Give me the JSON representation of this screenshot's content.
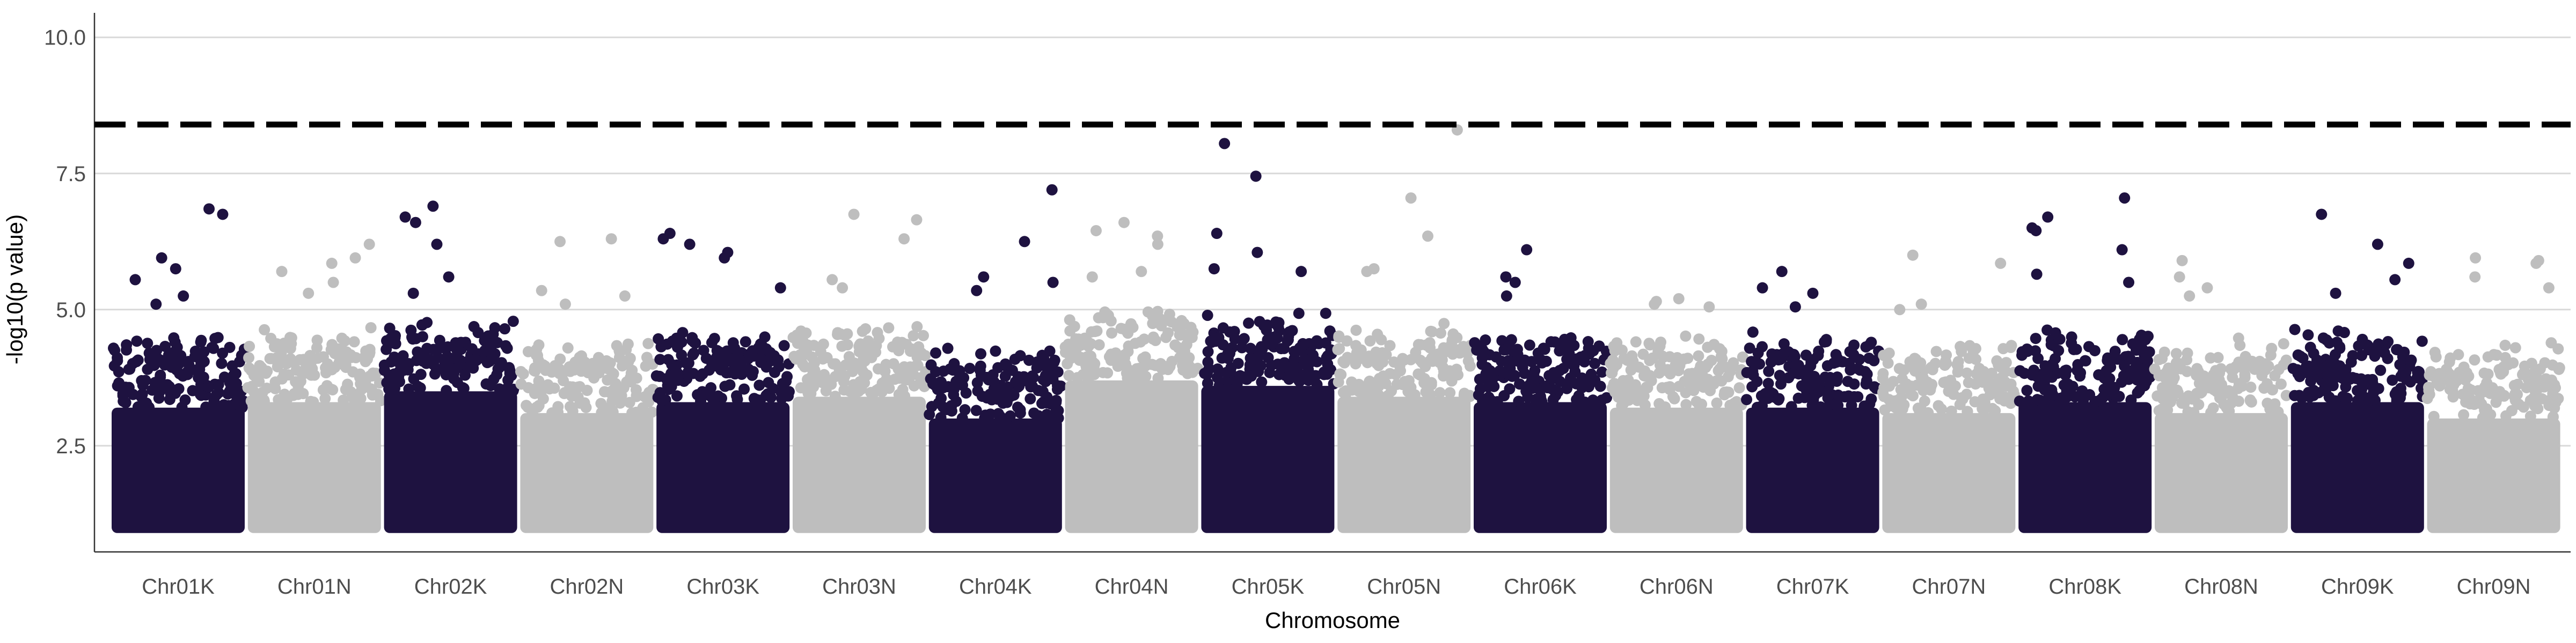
{
  "chart_data": {
    "type": "scatter",
    "title": "",
    "xlabel": "Chromosome",
    "ylabel": "-log10(p value)",
    "ylim": [
      0.55,
      10.45
    ],
    "yticks": [
      2.5,
      5.0,
      7.5,
      10.0
    ],
    "ytick_labels": [
      "2.5",
      "5.0",
      "7.5",
      "10.0"
    ],
    "grid": "horizontal major lines only",
    "legend": "none",
    "threshold": {
      "value": 8.4,
      "style": "dashed",
      "color": "#000000"
    },
    "point_floor": 1.0,
    "colors": {
      "dark": "#1e1240",
      "light": "#bebebe"
    },
    "categories": [
      "Chr01K",
      "Chr01N",
      "Chr02K",
      "Chr02N",
      "Chr03K",
      "Chr03N",
      "Chr04K",
      "Chr04N",
      "Chr05K",
      "Chr05N",
      "Chr06K",
      "Chr06N",
      "Chr07K",
      "Chr07N",
      "Chr08K",
      "Chr08N",
      "Chr09K",
      "Chr09N"
    ],
    "series": [
      {
        "category": "Chr01K",
        "color": "dark",
        "band_top": 3.8,
        "top_points": [
          6.85,
          6.75,
          5.95,
          5.75,
          5.55,
          5.25,
          5.1
        ]
      },
      {
        "category": "Chr01N",
        "color": "light",
        "band_top": 3.9,
        "top_points": [
          6.2,
          5.95,
          5.85,
          5.7,
          5.5,
          5.3
        ]
      },
      {
        "category": "Chr02K",
        "color": "dark",
        "band_top": 4.1,
        "top_points": [
          6.9,
          6.7,
          6.6,
          6.2,
          5.6,
          5.3
        ]
      },
      {
        "category": "Chr02N",
        "color": "light",
        "band_top": 3.7,
        "top_points": [
          6.3,
          6.25,
          5.35,
          5.25,
          5.1
        ]
      },
      {
        "category": "Chr03K",
        "color": "dark",
        "band_top": 3.9,
        "top_points": [
          6.4,
          6.3,
          6.2,
          6.05,
          5.95,
          5.4
        ]
      },
      {
        "category": "Chr03N",
        "color": "light",
        "band_top": 4.0,
        "top_points": [
          6.75,
          6.65,
          6.3,
          5.55,
          5.4
        ]
      },
      {
        "category": "Chr04K",
        "color": "dark",
        "band_top": 3.6,
        "top_points": [
          7.2,
          6.25,
          5.6,
          5.5,
          5.35
        ]
      },
      {
        "category": "Chr04N",
        "color": "light",
        "band_top": 4.3,
        "top_points": [
          6.6,
          6.45,
          6.35,
          6.2,
          5.7,
          5.6
        ]
      },
      {
        "category": "Chr05K",
        "color": "dark",
        "band_top": 4.2,
        "top_points": [
          8.05,
          7.45,
          6.4,
          6.05,
          5.75,
          5.7
        ]
      },
      {
        "category": "Chr05N",
        "color": "light",
        "band_top": 4.0,
        "top_points": [
          8.3,
          7.05,
          6.35,
          5.75,
          5.7
        ]
      },
      {
        "category": "Chr06K",
        "color": "dark",
        "band_top": 3.9,
        "top_points": [
          6.1,
          5.6,
          5.5,
          5.25
        ]
      },
      {
        "category": "Chr06N",
        "color": "light",
        "band_top": 3.8,
        "top_points": [
          5.2,
          5.15,
          5.1,
          5.05
        ]
      },
      {
        "category": "Chr07K",
        "color": "dark",
        "band_top": 3.8,
        "top_points": [
          5.7,
          5.4,
          5.3,
          5.05
        ]
      },
      {
        "category": "Chr07N",
        "color": "light",
        "band_top": 3.7,
        "top_points": [
          6.0,
          5.85,
          5.1,
          5.0
        ]
      },
      {
        "category": "Chr08K",
        "color": "dark",
        "band_top": 3.9,
        "top_points": [
          7.05,
          6.7,
          6.5,
          6.45,
          6.1,
          5.65,
          5.5
        ]
      },
      {
        "category": "Chr08N",
        "color": "light",
        "band_top": 3.7,
        "top_points": [
          5.9,
          5.6,
          5.4,
          5.25
        ]
      },
      {
        "category": "Chr09K",
        "color": "dark",
        "band_top": 3.9,
        "top_points": [
          6.75,
          6.2,
          5.85,
          5.55,
          5.3
        ]
      },
      {
        "category": "Chr09N",
        "color": "light",
        "band_top": 3.6,
        "top_points": [
          5.95,
          5.9,
          5.85,
          5.6,
          5.4
        ]
      }
    ]
  }
}
